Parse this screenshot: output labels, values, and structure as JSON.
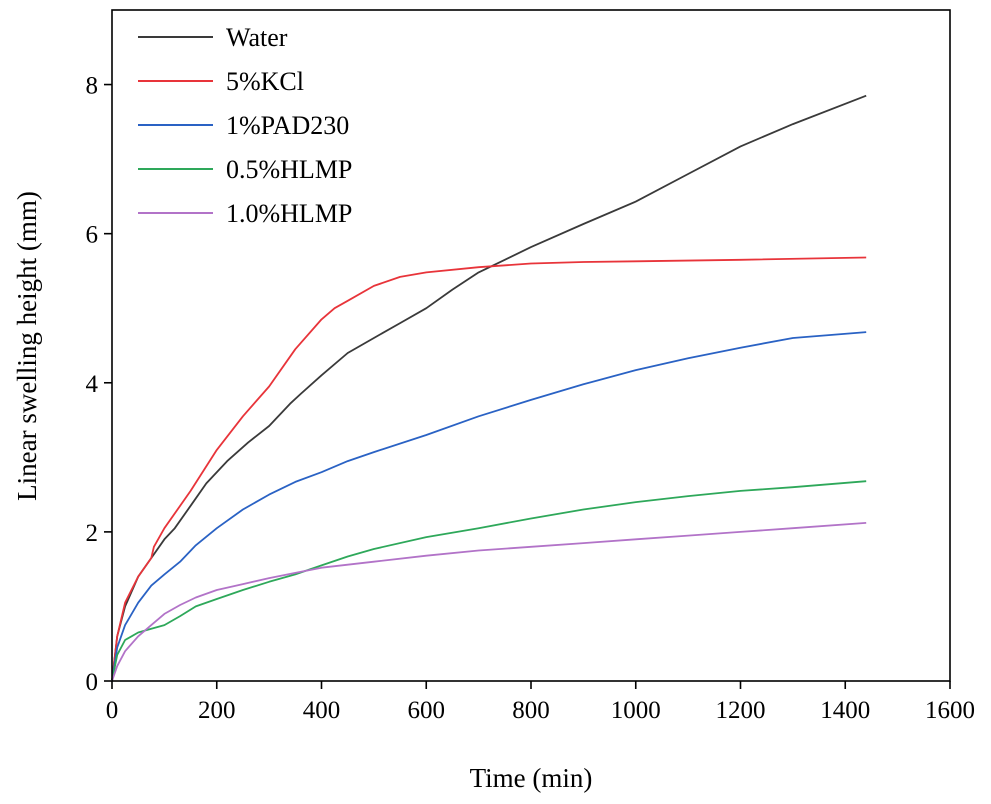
{
  "chart_data": {
    "type": "line",
    "title": "",
    "xlabel": "Time (min)",
    "ylabel": "Linear swelling height (mm)",
    "xlim": [
      0,
      1600
    ],
    "ylim": [
      0,
      9
    ],
    "xticks": [
      0,
      200,
      400,
      600,
      800,
      1000,
      1200,
      1400,
      1600
    ],
    "yticks": [
      0,
      2,
      4,
      6,
      8
    ],
    "grid": false,
    "legend": "top-left",
    "series": [
      {
        "name": "Water",
        "color": "#3a3a3a",
        "x": [
          0,
          10,
          25,
          50,
          75,
          100,
          120,
          150,
          180,
          220,
          260,
          300,
          340,
          360,
          400,
          450,
          500,
          550,
          600,
          650,
          700,
          750,
          800,
          900,
          1000,
          1100,
          1200,
          1300,
          1440
        ],
        "y": [
          0,
          0.6,
          1.0,
          1.4,
          1.65,
          1.9,
          2.05,
          2.35,
          2.65,
          2.95,
          3.2,
          3.42,
          3.72,
          3.85,
          4.1,
          4.4,
          4.6,
          4.8,
          5.0,
          5.25,
          5.48,
          5.65,
          5.82,
          6.13,
          6.43,
          6.8,
          7.17,
          7.47,
          7.85
        ]
      },
      {
        "name": "5%KCl",
        "color": "#e8343a",
        "x": [
          0,
          10,
          25,
          50,
          75,
          80,
          100,
          150,
          200,
          250,
          300,
          350,
          400,
          425,
          450,
          500,
          550,
          600,
          700,
          800,
          900,
          1000,
          1200,
          1440
        ],
        "y": [
          0,
          0.6,
          1.05,
          1.4,
          1.65,
          1.8,
          2.05,
          2.55,
          3.1,
          3.55,
          3.95,
          4.45,
          4.85,
          5.0,
          5.1,
          5.3,
          5.42,
          5.48,
          5.55,
          5.6,
          5.62,
          5.63,
          5.65,
          5.68
        ]
      },
      {
        "name": "1%PAD230",
        "color": "#2a62c4",
        "x": [
          0,
          10,
          25,
          50,
          75,
          100,
          130,
          160,
          200,
          250,
          300,
          350,
          400,
          450,
          500,
          600,
          700,
          800,
          900,
          1000,
          1100,
          1200,
          1300,
          1440
        ],
        "y": [
          0,
          0.45,
          0.75,
          1.05,
          1.28,
          1.43,
          1.6,
          1.82,
          2.05,
          2.3,
          2.5,
          2.67,
          2.8,
          2.95,
          3.07,
          3.3,
          3.55,
          3.77,
          3.98,
          4.17,
          4.33,
          4.47,
          4.6,
          4.68
        ]
      },
      {
        "name": "0.5%HLMP",
        "color": "#2ea85a",
        "x": [
          0,
          10,
          25,
          50,
          75,
          100,
          130,
          160,
          200,
          250,
          300,
          350,
          400,
          450,
          500,
          600,
          700,
          800,
          900,
          1000,
          1100,
          1200,
          1300,
          1440
        ],
        "y": [
          0,
          0.35,
          0.55,
          0.65,
          0.7,
          0.75,
          0.87,
          1.0,
          1.1,
          1.22,
          1.33,
          1.43,
          1.55,
          1.67,
          1.77,
          1.93,
          2.05,
          2.18,
          2.3,
          2.4,
          2.48,
          2.55,
          2.6,
          2.68
        ]
      },
      {
        "name": "1.0%HLMP",
        "color": "#b273c8",
        "x": [
          0,
          10,
          25,
          50,
          75,
          100,
          130,
          160,
          200,
          250,
          300,
          350,
          400,
          450,
          500,
          600,
          700,
          800,
          900,
          1000,
          1100,
          1200,
          1300,
          1440
        ],
        "y": [
          0,
          0.2,
          0.4,
          0.6,
          0.75,
          0.9,
          1.02,
          1.12,
          1.22,
          1.3,
          1.38,
          1.45,
          1.52,
          1.56,
          1.6,
          1.68,
          1.75,
          1.8,
          1.85,
          1.9,
          1.95,
          2.0,
          2.05,
          2.12
        ]
      }
    ]
  }
}
